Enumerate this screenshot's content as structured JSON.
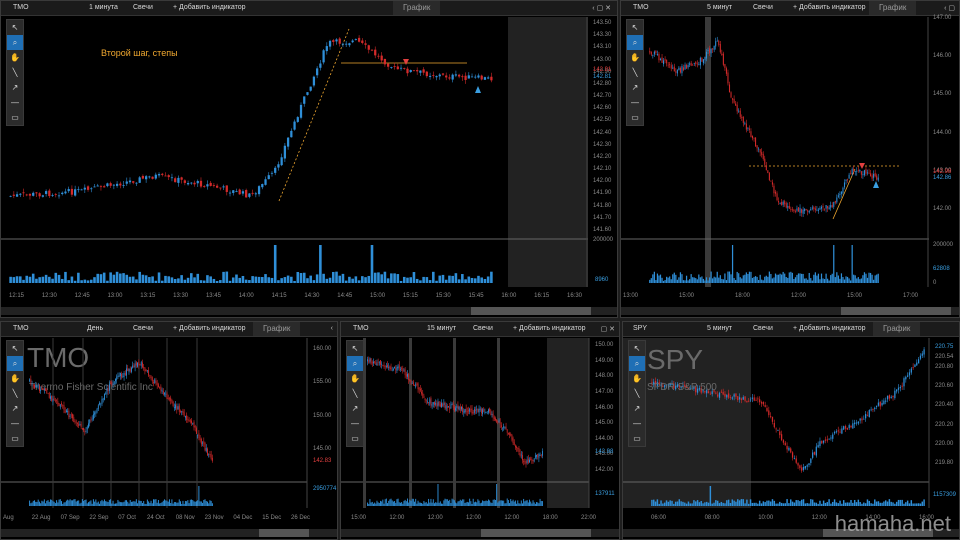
{
  "toolbar_icons": [
    "cursor-icon",
    "zoom-icon",
    "hand-icon",
    "line-icon",
    "arrow-icon",
    "hline-icon",
    "rect-icon"
  ],
  "panels": [
    {
      "id": "p1",
      "symbol": "TMO",
      "interval": "1 минута",
      "type": "Свечи",
      "add_indicator": "+ Добавить индикатор",
      "graph": "График",
      "annotation": "Второй шаг, степы",
      "y_labels": [
        "143.50",
        "143.30",
        "143.10",
        "143.00",
        "142.90",
        "142.80",
        "142.70",
        "142.60",
        "142.50",
        "142.40",
        "142.30",
        "142.20",
        "142.10",
        "142.00",
        "141.90",
        "141.80",
        "141.70",
        "141.60"
      ],
      "price_tags": [
        "142.91",
        "142.81"
      ],
      "vol_top": "200000",
      "vol_last": "8960",
      "x_labels": [
        "12:15",
        "12:30",
        "12:45",
        "13:00",
        "13:15",
        "13:30",
        "13:45",
        "14:00",
        "14:15",
        "14:30",
        "14:45",
        "15:00",
        "15:15",
        "15:30",
        "15:45",
        "16:00",
        "16:15",
        "16:30"
      ]
    },
    {
      "id": "p2",
      "symbol": "TMO",
      "interval": "5 минут",
      "type": "Свечи",
      "add_indicator": "+ Добавить индикатор",
      "graph": "График",
      "y_labels": [
        "147.00",
        "146.00",
        "145.00",
        "144.00",
        "143.00",
        "142.00"
      ],
      "price_tags": [
        "142.98",
        "142.86"
      ],
      "vol_top": "200000",
      "vol_last": "62808",
      "vol_zero": "0",
      "x_labels": [
        "13:00",
        "15:00",
        "18:00",
        "12:00",
        "15:00",
        "17:00"
      ]
    },
    {
      "id": "p3",
      "symbol": "TMO",
      "interval": "День",
      "type": "Свечи",
      "add_indicator": "+ Добавить индикатор",
      "graph": "График",
      "wm_symbol": "TMO",
      "wm_name": "Thermo Fisher Scientific Inc",
      "y_labels": [
        "160.00",
        "155.00",
        "150.00",
        "145.00"
      ],
      "price_tags": [
        "142.83"
      ],
      "vol_last": "2950774",
      "x_labels": [
        "Aug",
        "22 Aug",
        "07 Sep",
        "22 Sep",
        "07 Oct",
        "24 Oct",
        "08 Nov",
        "23 Nov",
        "04 Dec",
        "15 Dec",
        "26 Dec"
      ]
    },
    {
      "id": "p4",
      "symbol": "TMO",
      "interval": "15 минут",
      "type": "Свечи",
      "add_indicator": "+ Добавить индикатор",
      "graph": "График",
      "y_labels": [
        "150.00",
        "149.00",
        "148.00",
        "147.00",
        "146.00",
        "145.00",
        "144.00",
        "143.00",
        "142.00"
      ],
      "price_tags": [
        "142.98"
      ],
      "vol_last": "137911",
      "x_labels": [
        "15:00",
        "12:00",
        "12:00",
        "12:00",
        "12:00",
        "18:00",
        "22:00"
      ]
    },
    {
      "id": "p5",
      "symbol": "SPY",
      "interval": "5 минут",
      "type": "Свечи",
      "add_indicator": "+ Добавить индикатор",
      "graph": "График",
      "wm_symbol": "SPY",
      "wm_name": "SPDR S&P 500",
      "y_labels": [
        "220.80",
        "220.60",
        "220.40",
        "220.20",
        "220.00",
        "219.80"
      ],
      "price_tags": [
        "220.75",
        "220.54"
      ],
      "vol_last": "1157309",
      "x_labels": [
        "06:00",
        "08:00",
        "10:00",
        "12:00",
        "14:00",
        "16:00"
      ]
    }
  ],
  "brand": "hamaha.net"
}
